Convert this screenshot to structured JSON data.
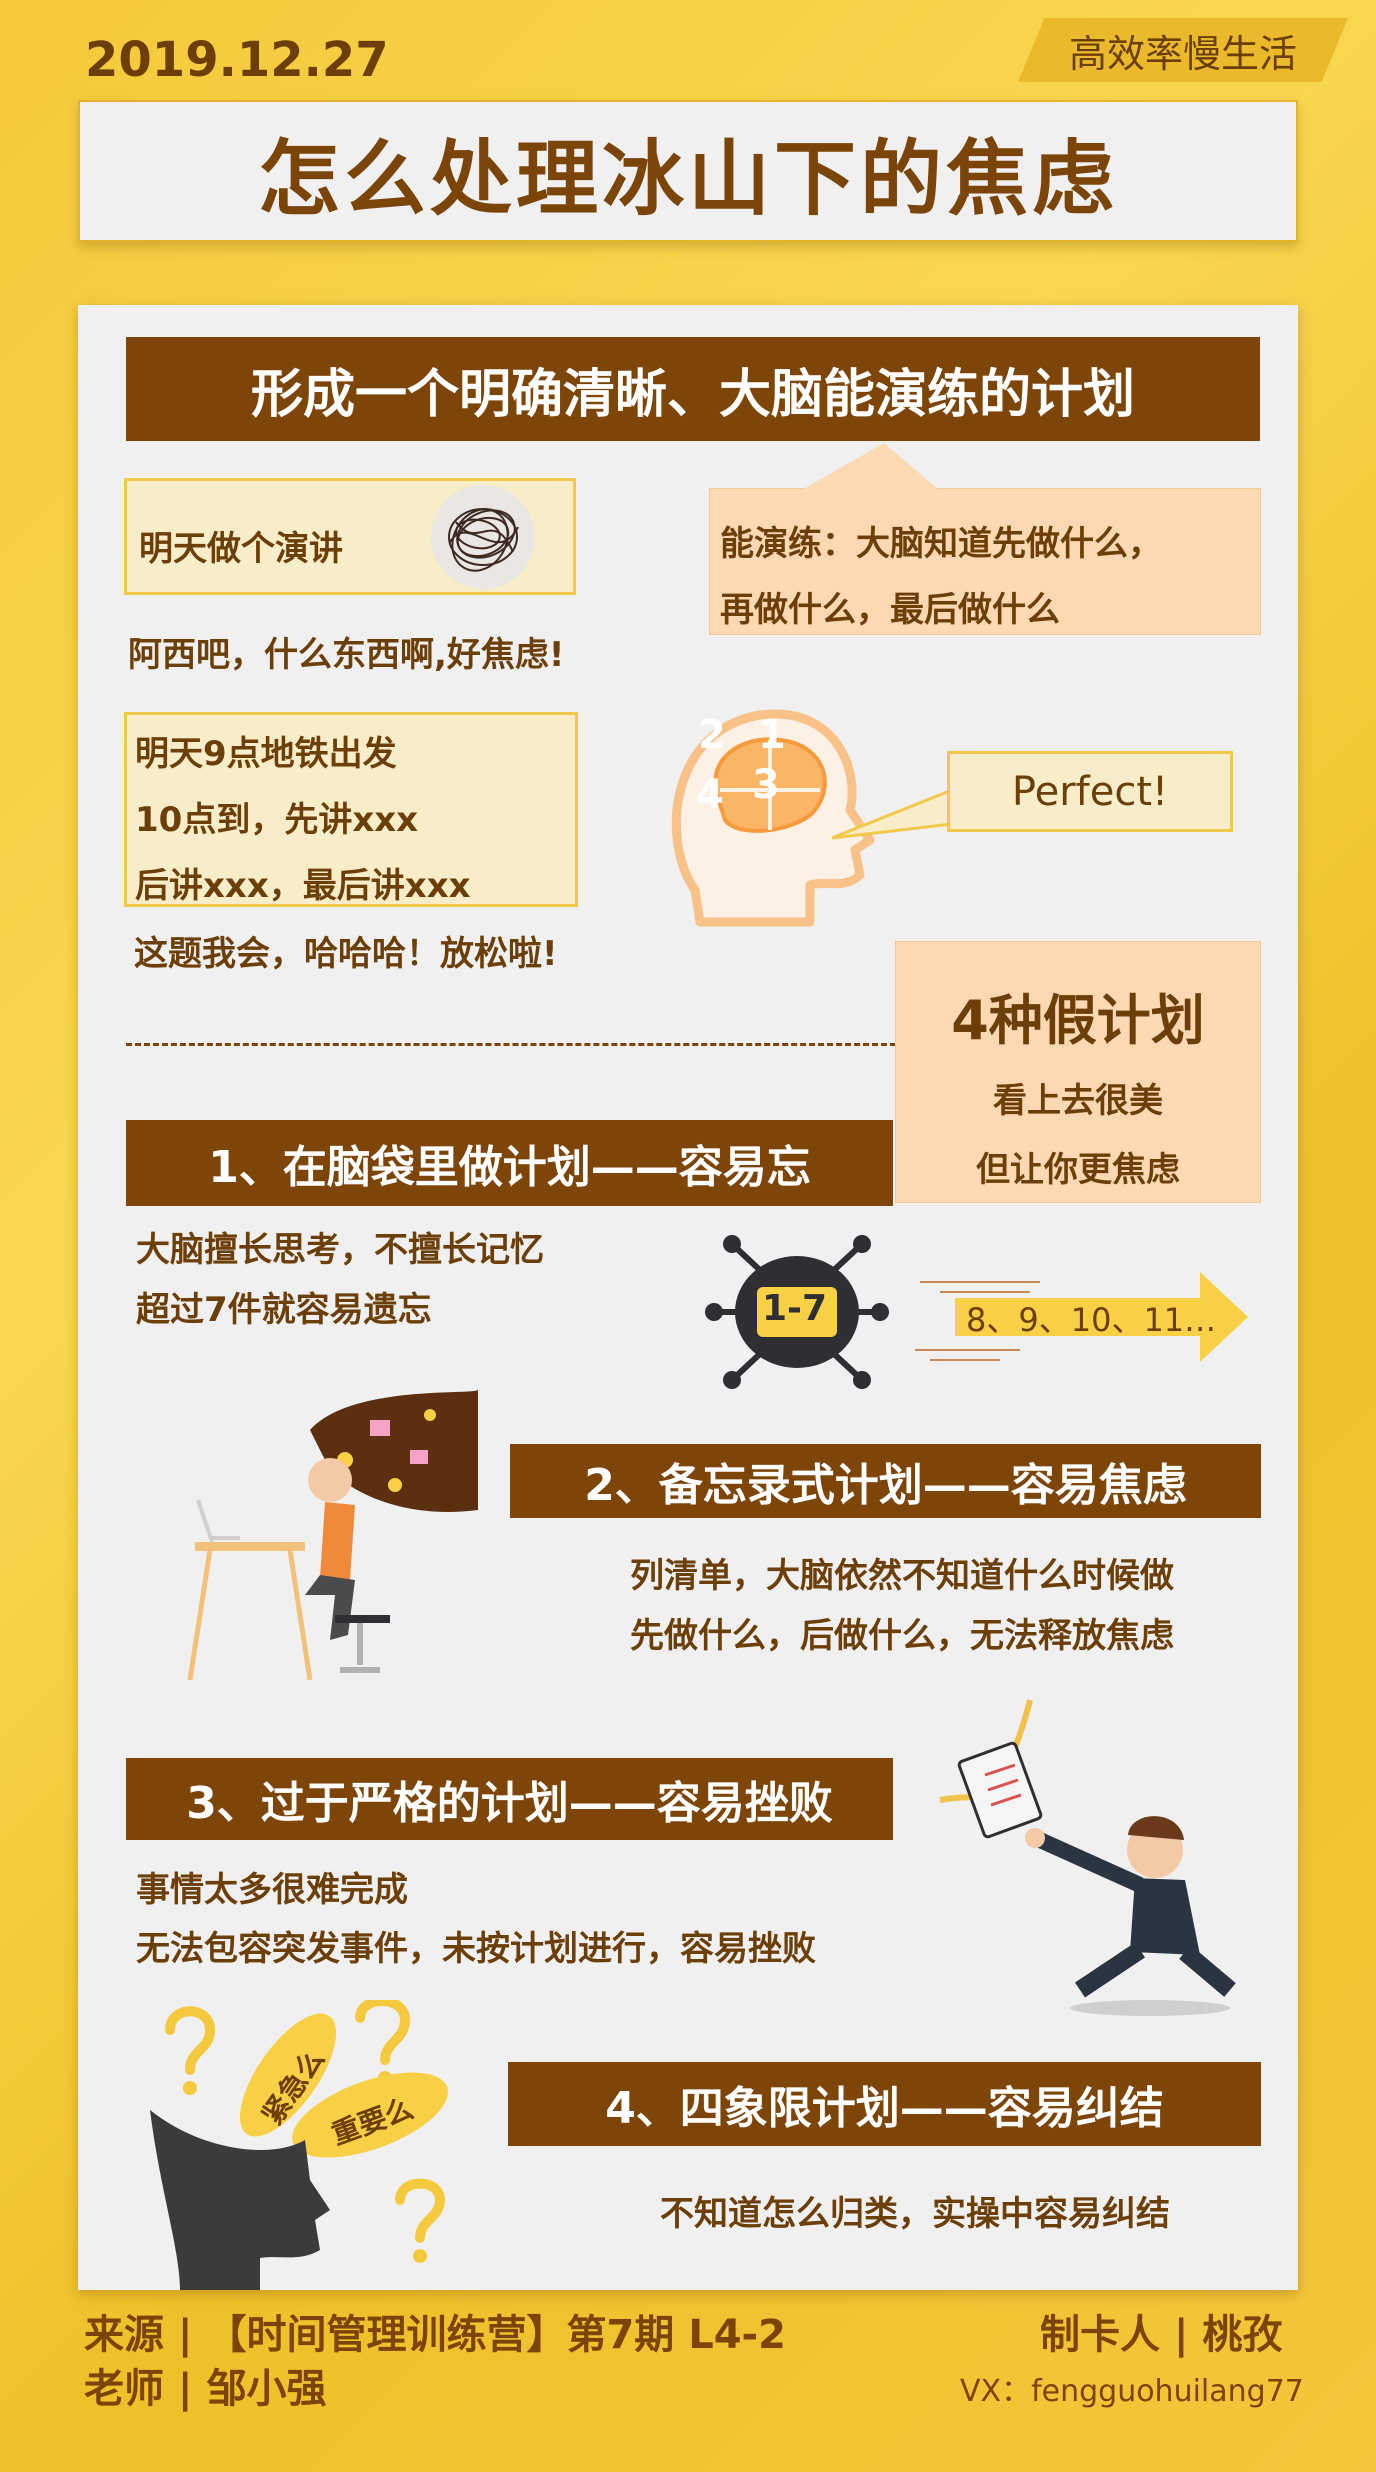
{
  "header": {
    "date": "2019.12.27",
    "brand": "高效率慢生活",
    "title": "怎么处理冰山下的焦虑"
  },
  "section_main": {
    "banner": "形成一个明确清晰、大脑能演练的计划",
    "box1": "明天做个演讲",
    "box1_reaction": "阿西吧，什么东西啊,好焦虑!",
    "callout_line1": "能演练：大脑知道先做什么，",
    "callout_line2": "再做什么，最后做什么",
    "box2_line1": "明天9点地铁出发",
    "box2_line2": "10点到，先讲xxx",
    "box2_line3": "后讲xxx，最后讲xxx",
    "box2_reaction": "这题我会，哈哈哈！放松啦!",
    "brain_numbers": [
      "2",
      "1",
      "4",
      "3"
    ],
    "perfect": "Perfect!"
  },
  "fake_plans": {
    "title": "4种假计划",
    "line1": "看上去很美",
    "line2": "但让你更焦虑"
  },
  "plans": [
    {
      "heading": "1、在脑袋里做计划——容易忘",
      "line1": "大脑擅长思考，不擅长记忆",
      "line2": "超过7件就容易遗忘",
      "chip": "1-7",
      "arrow": "8、9、10、11…"
    },
    {
      "heading": "2、备忘录式计划——容易焦虑",
      "line1": "列清单，大脑依然不知道什么时候做",
      "line2": "先做什么，后做什么，无法释放焦虑"
    },
    {
      "heading": "3、过于严格的计划——容易挫败",
      "line1": "事情太多很难完成",
      "line2": "无法包容突发事件，未按计划进行，容易挫败"
    },
    {
      "heading": "4、四象限计划——容易纠结",
      "line1": "不知道怎么归类，实操中容易纠结",
      "bubble1": "紧急么",
      "bubble2": "重要么"
    }
  ],
  "footer": {
    "source": "来源 | 【时间管理训练营】第7期  L4-2",
    "teacher": "老师 | 邹小强",
    "maker": "制卡人 | 桃孜",
    "vx": "VX：fengguohuilang77"
  },
  "colors": {
    "brown": "#7e4509",
    "gold": "#f4c93a",
    "panel": "#f0f0f0",
    "peach": "#fcd9b2"
  }
}
